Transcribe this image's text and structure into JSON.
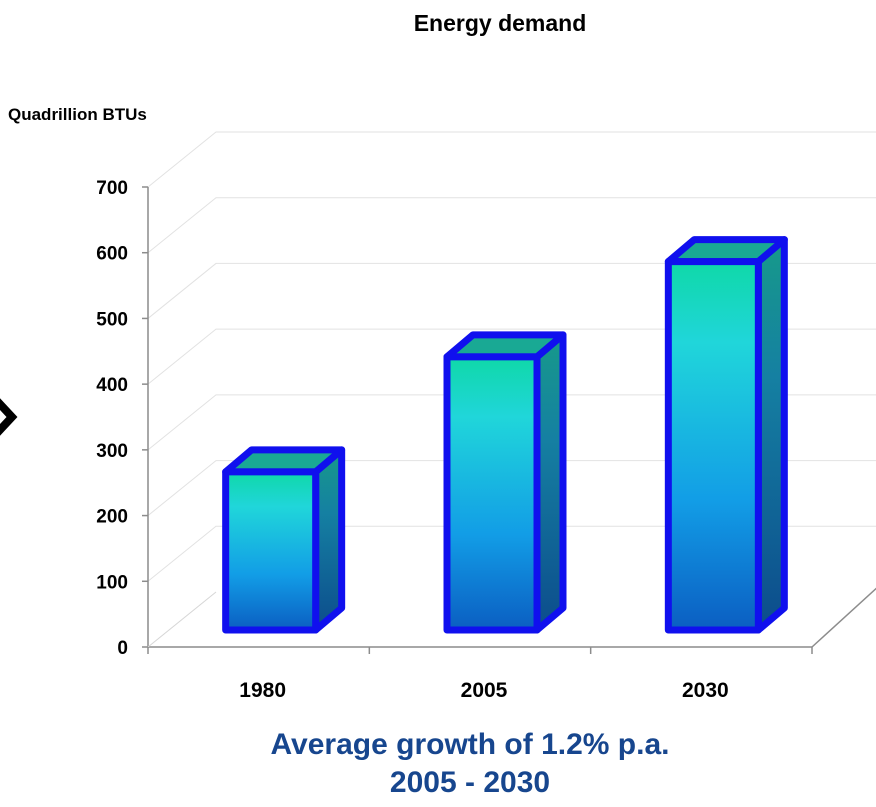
{
  "chart_data": {
    "type": "bar",
    "title": "Energy demand",
    "ylabel": "Quadrillion BTUs",
    "xlabel": "",
    "categories": [
      "1980",
      "2005",
      "2030"
    ],
    "values": [
      300,
      475,
      620
    ],
    "ylim": [
      0,
      700
    ],
    "yticks": [
      "0",
      "100",
      "200",
      "300",
      "400",
      "500",
      "600",
      "700"
    ],
    "grid": true,
    "style": "3d-column"
  },
  "caption": {
    "line1": "Average growth of 1.2% p.a.",
    "line2": "2005 - 2030"
  },
  "colors": {
    "bar_outline": "#1010ee",
    "bar_top": "#1ec8b0",
    "bar_mid": "#1fd3d8",
    "bar_bottom": "#0b62c8",
    "side_dark": "#0d4f8e",
    "caption_text": "#17468e"
  }
}
